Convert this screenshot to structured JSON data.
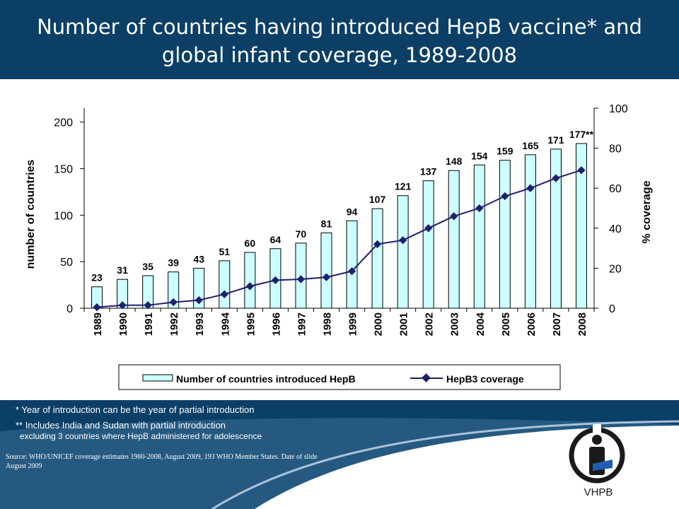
{
  "slide": {
    "title_line1": "Number of countries having introduced HepB vaccine* and",
    "title_line2": "global infant coverage, 1989-2008",
    "footnote1": "* Year of introduction can be the year of partial introduction",
    "footnote2": "** Includes India and Sudan with partial introduction",
    "footnote3": "excluding 3 countries where HepB  administered for adolescence",
    "source_line1": "Source: WHO/UNICEF coverage estimates 1980-2008, August 2009, 193 WHO Member States. Date of slide",
    "source_line2": "August 2009",
    "logo_text": "VHPB"
  },
  "colors": {
    "header": "#0b3f66",
    "bar_fill": "#ccffff",
    "bar_stroke": "#000000",
    "line": "#1f1f6b",
    "footer_wave": "#0b3f66",
    "logo_blue": "#1e5fb4"
  },
  "chart_data": {
    "type": "bar",
    "categories": [
      "1989",
      "1990",
      "1991",
      "1992",
      "1993",
      "1994",
      "1995",
      "1996",
      "1997",
      "1998",
      "1999",
      "2000",
      "2001",
      "2002",
      "2003",
      "2004",
      "2005",
      "2006",
      "2007",
      "2008"
    ],
    "series": [
      {
        "name": "Number of countries introduced HepB",
        "type": "bar",
        "axis": "left",
        "values": [
          23,
          31,
          35,
          39,
          43,
          51,
          60,
          64,
          70,
          81,
          94,
          107,
          121,
          137,
          148,
          154,
          159,
          165,
          171,
          177
        ],
        "labels": [
          "23",
          "31",
          "35",
          "39",
          "43",
          "51",
          "60",
          "64",
          "70",
          "81",
          "94",
          "107",
          "121",
          "137",
          "148",
          "154",
          "159",
          "165",
          "171",
          "177**"
        ]
      },
      {
        "name": "HepB3 coverage",
        "type": "line",
        "axis": "right",
        "values": [
          0.5,
          1.5,
          1.5,
          3,
          4,
          7,
          11,
          14,
          14.5,
          15.5,
          18.5,
          32,
          34,
          40,
          46,
          50,
          56,
          60,
          65,
          69
        ]
      }
    ],
    "ylabel": "number of countries",
    "ylabel_right": "% coverage",
    "ylim": [
      0,
      215
    ],
    "ylim_right": [
      0,
      100
    ],
    "yticks": [
      0,
      50,
      100,
      150,
      200
    ],
    "yticks_right": [
      0,
      20,
      40,
      60,
      80,
      100
    ],
    "legend_position": "bottom",
    "grid": false
  }
}
